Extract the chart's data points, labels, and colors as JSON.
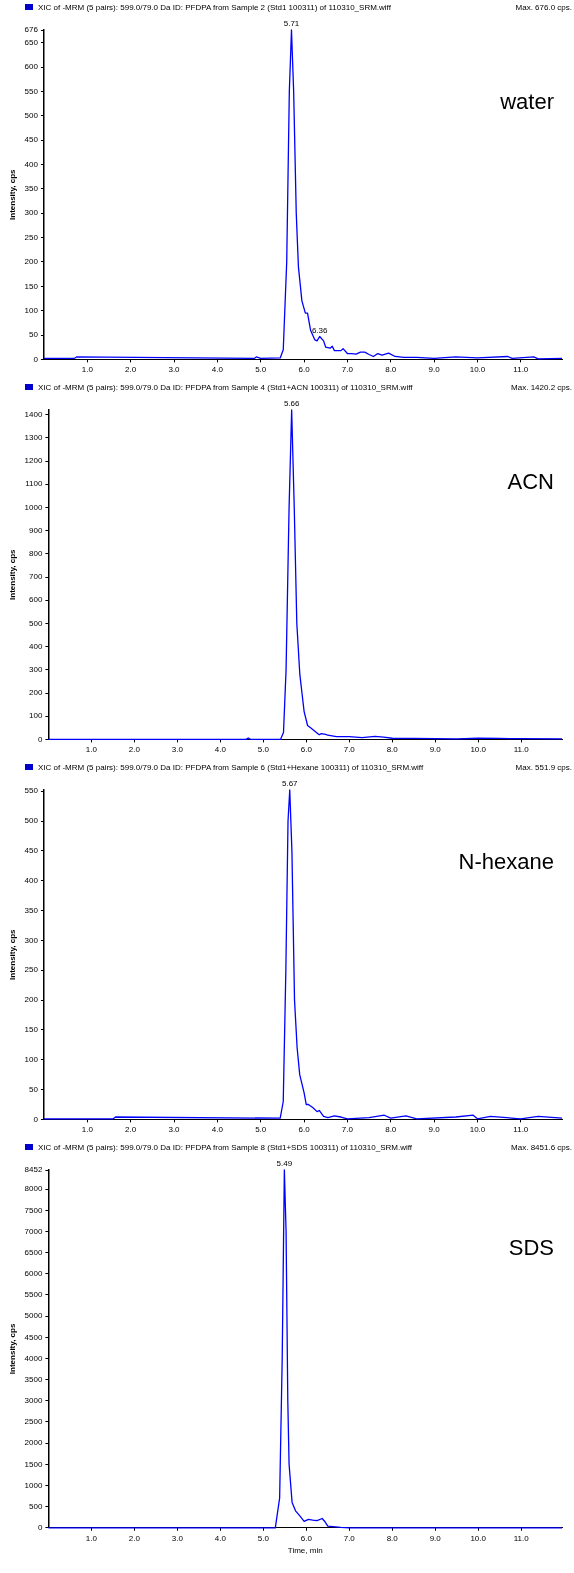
{
  "chart_data": [
    {
      "type": "line",
      "title": "XIC of -MRM (5 pairs): 599.0/79.0 Da ID: PFDPA from Sample 2 (Std1 100311) of 110310_SRM.wiff",
      "ylabel": "Intensity, cps",
      "xlim": [
        0,
        11.95
      ],
      "ylim": [
        0,
        676
      ],
      "xticks": [
        {
          "value": 1,
          "label": "1.0"
        },
        {
          "value": 2,
          "label": "2.0"
        },
        {
          "value": 3,
          "label": "3.0"
        },
        {
          "value": 4,
          "label": "4.0"
        },
        {
          "value": 5,
          "label": "5.0"
        },
        {
          "value": 6,
          "label": "6.0"
        },
        {
          "value": 7,
          "label": "7.0"
        },
        {
          "value": 8,
          "label": "8.0"
        },
        {
          "value": 9,
          "label": "9.0"
        },
        {
          "value": 10,
          "label": "10.0"
        },
        {
          "value": 11,
          "label": "11.0"
        }
      ],
      "yticks": [
        0,
        50,
        100,
        150,
        200,
        250,
        300,
        350,
        400,
        450,
        500,
        550,
        600,
        650,
        676
      ],
      "series": [
        {
          "color": "#0000ff",
          "x": [
            0,
            0.7,
            0.75,
            4.85,
            4.9,
            5.0,
            5.45,
            5.52,
            5.6,
            5.66,
            5.71,
            5.76,
            5.82,
            5.87,
            5.95,
            6.03,
            6.08,
            6.15,
            6.25,
            6.3,
            6.36,
            6.45,
            6.5,
            6.6,
            6.65,
            6.7,
            6.85,
            6.9,
            7.0,
            7.1,
            7.2,
            7.3,
            7.4,
            7.5,
            7.6,
            7.7,
            7.8,
            7.95,
            8.1,
            8.3,
            8.6,
            9.0,
            9.5,
            10.0,
            10.7,
            10.8,
            11.3,
            11.4,
            11.95
          ],
          "values": [
            2,
            2,
            5,
            2,
            5,
            2,
            3,
            20,
            200,
            550,
            676,
            550,
            300,
            190,
            120,
            95,
            95,
            60,
            40,
            38,
            47,
            38,
            25,
            23,
            27,
            18,
            18,
            22,
            12,
            12,
            11,
            15,
            15,
            10,
            6,
            12,
            9,
            13,
            6,
            4,
            4,
            2,
            5,
            3,
            6,
            2,
            5,
            1,
            2
          ]
        }
      ],
      "annotations": [
        "Max. 676.0 cps.",
        "water",
        {
          "text": "5.71",
          "x": 5.71,
          "y": 676
        },
        {
          "text": "6.36",
          "x": 6.36,
          "y": 47
        }
      ],
      "marker": "none",
      "grid": false,
      "legend": false
    },
    {
      "type": "line",
      "title": "XIC of -MRM (5 pairs): 599.0/79.0 Da ID: PFDPA from Sample 4 (Std1+ACN 100311) of 110310_SRM.wiff",
      "ylabel": "Intensity, cps",
      "xlim": [
        0,
        11.95
      ],
      "ylim": [
        0,
        1420
      ],
      "xticks": [
        {
          "value": 1,
          "label": "1.0"
        },
        {
          "value": 2,
          "label": "2.0"
        },
        {
          "value": 3,
          "label": "3.0"
        },
        {
          "value": 4,
          "label": "4.0"
        },
        {
          "value": 5,
          "label": "5.0"
        },
        {
          "value": 6,
          "label": "6.0"
        },
        {
          "value": 7,
          "label": "7.0"
        },
        {
          "value": 8,
          "label": "8.0"
        },
        {
          "value": 9,
          "label": "9.0"
        },
        {
          "value": 10,
          "label": "10.0"
        },
        {
          "value": 11,
          "label": "11.0"
        }
      ],
      "yticks": [
        0,
        100,
        200,
        300,
        400,
        500,
        600,
        700,
        800,
        900,
        1000,
        1100,
        1200,
        1300,
        1400
      ],
      "series": [
        {
          "color": "#0000ff",
          "x": [
            0,
            4.6,
            4.65,
            4.7,
            5.4,
            5.47,
            5.53,
            5.6,
            5.66,
            5.72,
            5.78,
            5.85,
            5.9,
            5.95,
            6.03,
            6.1,
            6.2,
            6.3,
            6.35,
            6.45,
            6.5,
            6.6,
            6.7,
            7.0,
            7.3,
            7.6,
            7.8,
            8.0,
            8.5,
            9.0,
            9.5,
            10.0,
            10.5,
            11.0,
            11.95
          ],
          "values": [
            0,
            0,
            6,
            0,
            0,
            30,
            300,
            1000,
            1420,
            1000,
            500,
            280,
            200,
            120,
            60,
            50,
            35,
            20,
            25,
            22,
            18,
            15,
            12,
            12,
            8,
            13,
            10,
            5,
            4,
            3,
            2,
            5,
            4,
            3,
            2
          ]
        }
      ],
      "annotations": [
        "Max. 1420.2 cps.",
        "ACN",
        {
          "text": "5.66",
          "x": 5.66,
          "y": 1420
        }
      ],
      "marker": "none",
      "grid": false,
      "legend": false
    },
    {
      "type": "line",
      "title": "XIC of -MRM (5 pairs): 599.0/79.0 Da ID: PFDPA from Sample 6 (Std1+Hexane 100311) of 110310_SRM.wiff",
      "ylabel": "Intensity, cps",
      "xlim": [
        0,
        11.95
      ],
      "ylim": [
        0,
        552
      ],
      "xticks": [
        {
          "value": 1,
          "label": "1.0"
        },
        {
          "value": 2,
          "label": "2.0"
        },
        {
          "value": 3,
          "label": "3.0"
        },
        {
          "value": 4,
          "label": "4.0"
        },
        {
          "value": 5,
          "label": "5.0"
        },
        {
          "value": 6,
          "label": "6.0"
        },
        {
          "value": 7,
          "label": "7.0"
        },
        {
          "value": 8,
          "label": "8.0"
        },
        {
          "value": 9,
          "label": "9.0"
        },
        {
          "value": 10,
          "label": "10.0"
        },
        {
          "value": 11,
          "label": "11.0"
        }
      ],
      "yticks": [
        0,
        50,
        100,
        150,
        200,
        250,
        300,
        350,
        400,
        450,
        500,
        550
      ],
      "series": [
        {
          "color": "#0000ff",
          "x": [
            0,
            1.6,
            1.65,
            5.45,
            5.52,
            5.58,
            5.63,
            5.67,
            5.72,
            5.78,
            5.84,
            5.9,
            5.95,
            6.0,
            6.05,
            6.1,
            6.2,
            6.3,
            6.35,
            6.45,
            6.55,
            6.7,
            6.85,
            7.0,
            7.5,
            7.85,
            8.0,
            8.35,
            8.6,
            9.5,
            9.9,
            10.0,
            10.3,
            11.0,
            11.4,
            11.95
          ],
          "values": [
            1,
            1,
            4,
            2,
            30,
            250,
            500,
            552,
            450,
            200,
            120,
            75,
            60,
            45,
            25,
            25,
            20,
            13,
            15,
            5,
            3,
            6,
            4,
            1,
            3,
            7,
            2,
            6,
            1,
            4,
            7,
            1,
            5,
            1,
            5,
            2
          ]
        }
      ],
      "annotations": [
        "Max. 551.9 cps.",
        "N-hexane",
        {
          "text": "5.67",
          "x": 5.67,
          "y": 552
        }
      ],
      "marker": "none",
      "grid": false,
      "legend": false
    },
    {
      "type": "line",
      "title": "XIC of -MRM (5 pairs): 599.0/79.0 Da ID: PFDPA from Sample 8 (Std1+SDS 100311) of 110310_SRM.wiff",
      "xlabel": "Time, min",
      "ylabel": "Intensity, cps",
      "xlim": [
        0,
        11.95
      ],
      "ylim": [
        0,
        8452
      ],
      "xticks": [
        {
          "value": 1,
          "label": "1.0"
        },
        {
          "value": 2,
          "label": "2.0"
        },
        {
          "value": 3,
          "label": "3.0"
        },
        {
          "value": 4,
          "label": "4.0"
        },
        {
          "value": 5,
          "label": "5.0"
        },
        {
          "value": 6,
          "label": "6.0"
        },
        {
          "value": 7,
          "label": "7.0"
        },
        {
          "value": 8,
          "label": "8.0"
        },
        {
          "value": 9,
          "label": "9.0"
        },
        {
          "value": 10,
          "label": "10.0"
        },
        {
          "value": 11,
          "label": "11.0"
        }
      ],
      "yticks": [
        0,
        500,
        1000,
        1500,
        2000,
        2500,
        3000,
        3500,
        4000,
        4500,
        5000,
        5500,
        6000,
        6500,
        7000,
        7500,
        8000,
        8452
      ],
      "series": [
        {
          "color": "#0000ff",
          "x": [
            0,
            5.28,
            5.38,
            5.44,
            5.49,
            5.53,
            5.57,
            5.6,
            5.67,
            5.75,
            5.85,
            5.95,
            6.05,
            6.15,
            6.25,
            6.37,
            6.43,
            6.5,
            6.8,
            7.0,
            11.95
          ],
          "values": [
            0,
            0,
            700,
            4000,
            8452,
            7000,
            3000,
            1500,
            600,
            400,
            280,
            150,
            200,
            180,
            170,
            220,
            150,
            40,
            10,
            0,
            0
          ]
        }
      ],
      "annotations": [
        "Max. 8451.6 cps.",
        "SDS",
        {
          "text": "5.49",
          "x": 5.49,
          "y": 8452
        }
      ],
      "marker": "none",
      "grid": false,
      "legend": false
    }
  ]
}
